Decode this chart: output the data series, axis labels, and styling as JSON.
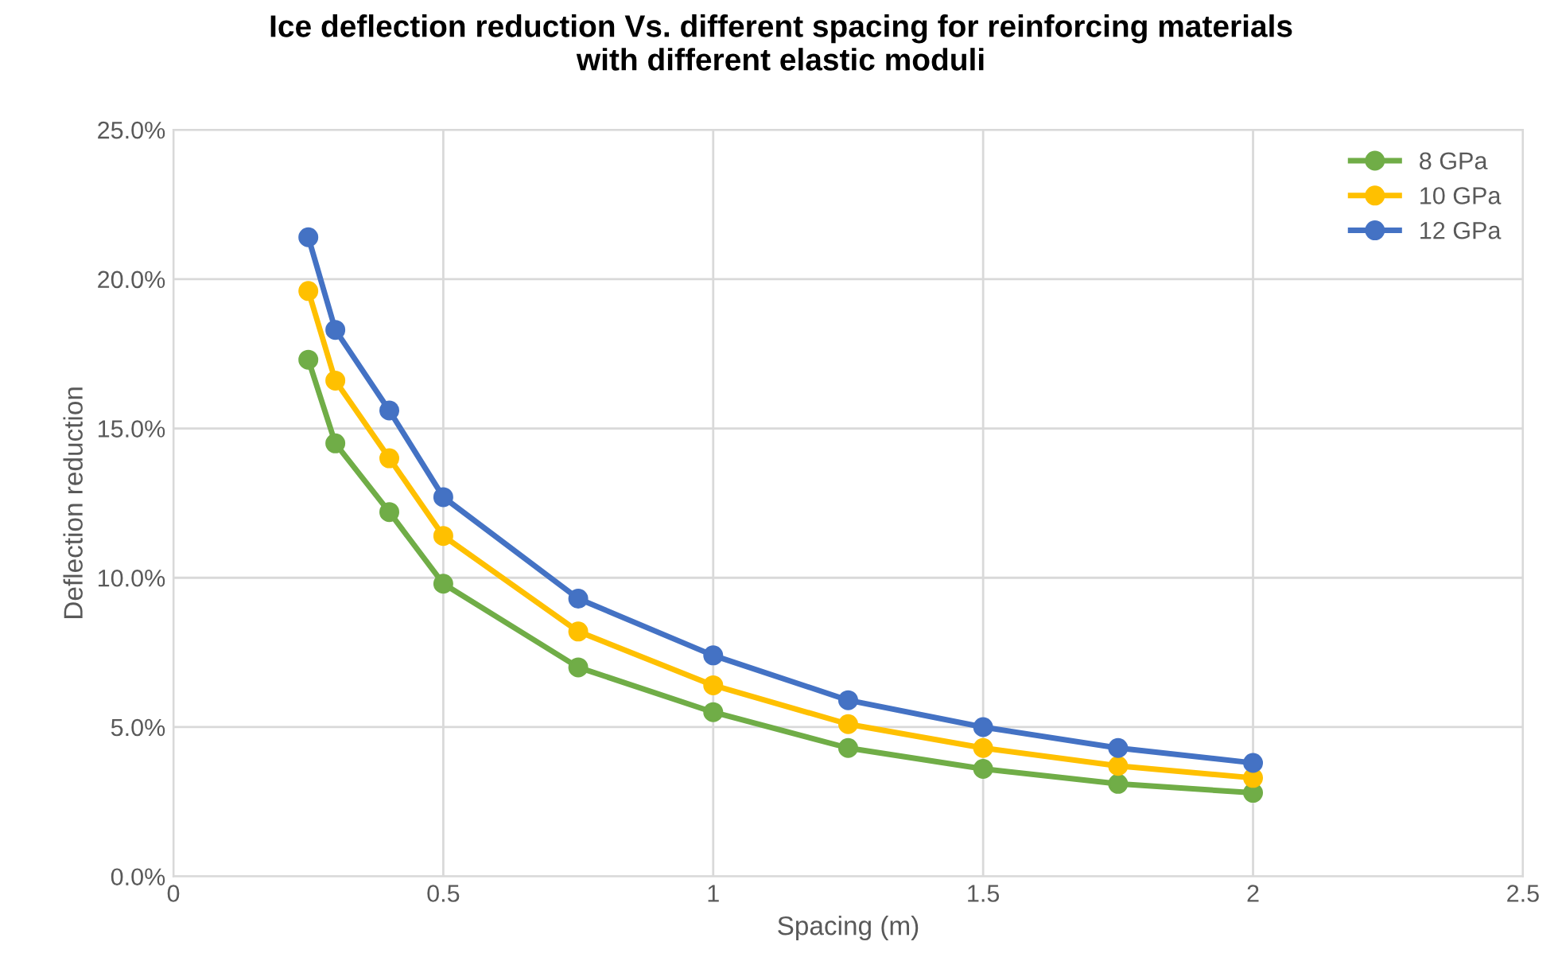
{
  "chart_data": {
    "type": "line",
    "title": "Ice deflection reduction Vs. different spacing for reinforcing materials\nwith different elastic moduli",
    "xlabel": "Spacing (m)",
    "ylabel": "Deflection reduction",
    "x": [
      0.25,
      0.3,
      0.4,
      0.5,
      0.75,
      1,
      1.25,
      1.5,
      1.75,
      2
    ],
    "series": [
      {
        "name": "8 GPa",
        "color": "#70ad47",
        "values": [
          17.3,
          14.5,
          12.2,
          9.8,
          7.0,
          5.5,
          4.3,
          3.6,
          3.1,
          2.8
        ]
      },
      {
        "name": "10 GPa",
        "color": "#ffc000",
        "values": [
          19.6,
          16.6,
          14.0,
          11.4,
          8.2,
          6.4,
          5.1,
          4.3,
          3.7,
          3.3
        ]
      },
      {
        "name": "12 GPa",
        "color": "#4472c4",
        "values": [
          21.4,
          18.3,
          15.6,
          12.7,
          9.3,
          7.4,
          5.9,
          5.0,
          4.3,
          3.8
        ]
      }
    ],
    "xlim": [
      0,
      2.5
    ],
    "xticks": [
      0,
      0.5,
      1,
      1.5,
      2,
      2.5
    ],
    "ylim": [
      0,
      25
    ],
    "yticks": [
      {
        "value": 0,
        "label": "0.0%"
      },
      {
        "value": 5,
        "label": "5.0%"
      },
      {
        "value": 10,
        "label": "10.0%"
      },
      {
        "value": 15,
        "label": "15.0%"
      },
      {
        "value": 20,
        "label": "20.0%"
      },
      {
        "value": 25,
        "label": "25.0%"
      }
    ],
    "grid": true,
    "legend": "top right",
    "marker": "circle",
    "line_style": "solid"
  }
}
